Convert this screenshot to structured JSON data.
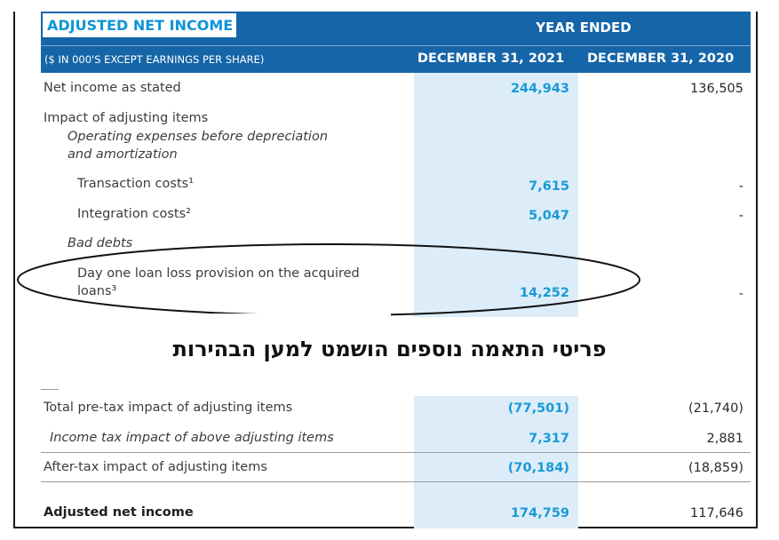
{
  "header": {
    "title": "ADJUSTED NET INCOME",
    "year_ended": "YEAR ENDED",
    "units": "($ IN 000'S EXCEPT EARNINGS PER SHARE)",
    "col1": "DECEMBER 31, 2021",
    "col2": "DECEMBER 31, 2020"
  },
  "rows": {
    "net_income": {
      "label": "Net income as stated",
      "v1": "244,943",
      "v2": "136,505"
    },
    "impact": {
      "label": "Impact of adjusting items"
    },
    "opex_l1": {
      "label": "Operating expenses before depreciation"
    },
    "opex_l2": {
      "label": "and amortization"
    },
    "transaction": {
      "label": "Transaction costs¹",
      "v1": "7,615",
      "v2": "-"
    },
    "integration": {
      "label": "Integration costs²",
      "v1": "5,047",
      "v2": "-"
    },
    "bad_debts": {
      "label": "Bad debts"
    },
    "dayone_l1": {
      "label": "Day one loan loss provision on the acquired"
    },
    "dayone_l2": {
      "label": "loans³",
      "v1": "14,252",
      "v2": "-"
    },
    "total_pretax": {
      "label": "Total pre-tax impact of adjusting items",
      "v1": "(77,501)",
      "v2": "(21,740)"
    },
    "income_tax": {
      "label": "Income tax impact of above adjusting items",
      "v1": "7,317",
      "v2": "2,881"
    },
    "after_tax": {
      "label": "After-tax impact of adjusting items",
      "v1": "(70,184)",
      "v2": "(18,859)"
    },
    "adjusted": {
      "label": "Adjusted net income",
      "v1": "174,759",
      "v2": "117,646"
    }
  },
  "overlay_note": "פריטי התאמה נוספים הושמט למען הבהירות",
  "colors": {
    "header_blue": "#1565a8",
    "accent_cyan": "#1a9ad6",
    "band": "#dcedf9"
  }
}
